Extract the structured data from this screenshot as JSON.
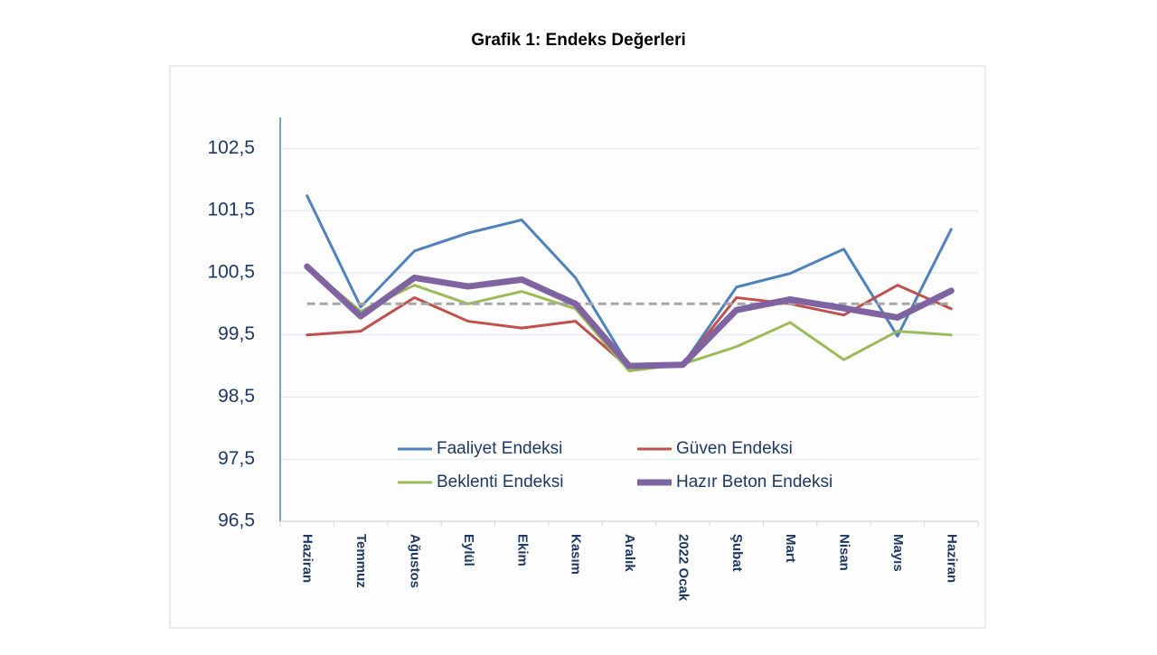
{
  "chart_data": {
    "type": "line",
    "title": "Grafik 1: Endeks Değerleri",
    "categories": [
      "Haziran",
      "Temmuz",
      "Ağustos",
      "Eylül",
      "Ekim",
      "Kasım",
      "Aralık",
      "2022 Ocak",
      "Şubat",
      "Mart",
      "Nisan",
      "Mayıs",
      "Haziran"
    ],
    "series": [
      {
        "name": "Faaliyet Endeksi",
        "color": "#4f81bd",
        "width": 3,
        "values": [
          101.74,
          99.95,
          100.85,
          101.14,
          101.35,
          100.42,
          99.0,
          99.02,
          100.27,
          100.49,
          100.88,
          99.48,
          101.2
        ]
      },
      {
        "name": "Güven Endeksi",
        "color": "#c0504d",
        "width": 3,
        "values": [
          99.5,
          99.56,
          100.1,
          99.72,
          99.61,
          99.72,
          98.97,
          99.02,
          100.1,
          100.0,
          99.82,
          100.3,
          99.92
        ]
      },
      {
        "name": "Beklenti Endeksi",
        "color": "#9bbb59",
        "width": 3,
        "values": [
          100.6,
          99.88,
          100.3,
          100.0,
          100.2,
          99.92,
          98.92,
          99.03,
          99.31,
          99.7,
          99.1,
          99.56,
          99.5
        ]
      },
      {
        "name": "Hazır Beton Endeksi",
        "color": "#8064a2",
        "width": 7,
        "values": [
          100.6,
          99.8,
          100.42,
          100.28,
          100.39,
          100.0,
          99.0,
          99.02,
          99.9,
          100.07,
          99.93,
          99.78,
          100.21
        ]
      }
    ],
    "ylim": [
      96.5,
      103
    ],
    "yticks": [
      {
        "value": 96.5,
        "label": "96,5"
      },
      {
        "value": 97.5,
        "label": "97,5"
      },
      {
        "value": 98.5,
        "label": "98,5"
      },
      {
        "value": 99.5,
        "label": "99,5"
      },
      {
        "value": 100.5,
        "label": "100,5"
      },
      {
        "value": 101.5,
        "label": "101,5"
      },
      {
        "value": 102.5,
        "label": "102,5"
      }
    ],
    "grid": true,
    "reference_line": {
      "value": 100,
      "color": "#a6a6a6"
    }
  }
}
